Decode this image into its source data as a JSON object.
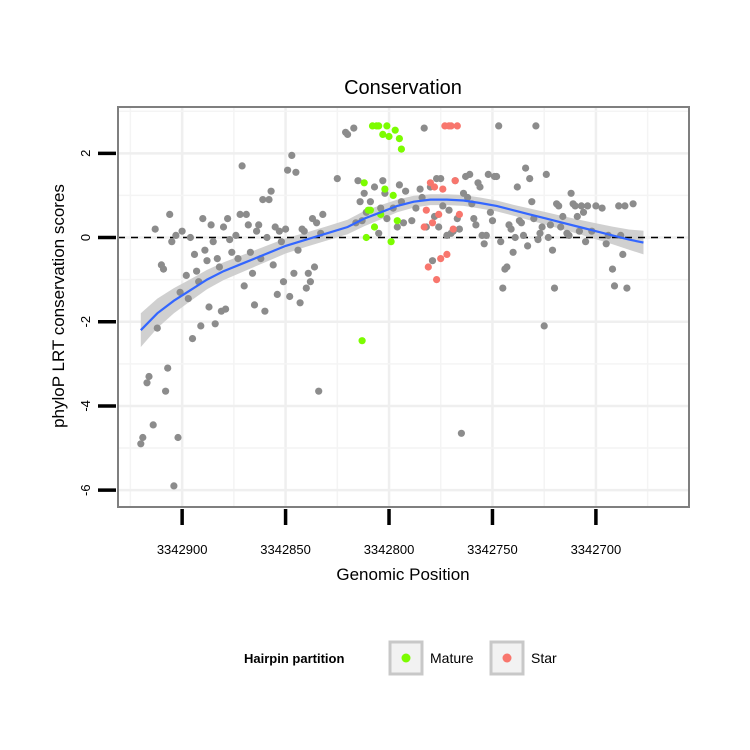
{
  "chart_data": {
    "type": "scatter",
    "title": "Conservation",
    "xlabel": "Genomic Position",
    "ylabel": "phyloP LRT conservation scores",
    "x_reversed": true,
    "xlim": [
      3342655,
      3342931
    ],
    "ylim": [
      -6.4,
      3.1
    ],
    "x_ticks": [
      3342900,
      3342850,
      3342800,
      3342750,
      3342700
    ],
    "x_tick_labels": [
      "3342900",
      "3342850",
      "3342800",
      "3342750",
      "3342700"
    ],
    "y_ticks": [
      2,
      0,
      -2,
      -4,
      -6
    ],
    "y_tick_labels": [
      "2",
      "0",
      "-2",
      "-4",
      "-6"
    ],
    "reference_line": {
      "y": 0,
      "style": "dashed"
    },
    "grid": true,
    "legend": {
      "title": "Hairpin partition",
      "position": "bottom",
      "entries": [
        {
          "label": "Mature",
          "color": "#7CFC00"
        },
        {
          "label": "Star",
          "color": "#F8766D"
        }
      ]
    },
    "colors": {
      "background_point": "#8c8c8c",
      "mature": "#7CFC00",
      "star": "#F8766D",
      "smooth": "#3366FF",
      "ribbon": "#c8c8c8"
    },
    "series": [
      {
        "name": "Background",
        "points": [
          [
            3342920,
            -4.9
          ],
          [
            3342919,
            -4.75
          ],
          [
            3342917,
            -3.45
          ],
          [
            3342916,
            -3.3
          ],
          [
            3342914,
            -4.45
          ],
          [
            3342913,
            0.2
          ],
          [
            3342912,
            -2.15
          ],
          [
            3342910,
            -0.65
          ],
          [
            3342909,
            -0.75
          ],
          [
            3342908,
            -3.65
          ],
          [
            3342907,
            -3.1
          ],
          [
            3342906,
            0.55
          ],
          [
            3342905,
            -0.1
          ],
          [
            3342904,
            -5.9
          ],
          [
            3342903,
            0.05
          ],
          [
            3342902,
            -4.75
          ],
          [
            3342901,
            -1.3
          ],
          [
            3342900,
            0.15
          ],
          [
            3342898,
            -0.9
          ],
          [
            3342897,
            -1.45
          ],
          [
            3342896,
            0.0
          ],
          [
            3342895,
            -2.4
          ],
          [
            3342894,
            -0.4
          ],
          [
            3342893,
            -0.8
          ],
          [
            3342892,
            -1.05
          ],
          [
            3342891,
            -2.1
          ],
          [
            3342890,
            0.45
          ],
          [
            3342889,
            -0.3
          ],
          [
            3342888,
            -0.55
          ],
          [
            3342887,
            -1.65
          ],
          [
            3342886,
            0.3
          ],
          [
            3342885,
            -0.1
          ],
          [
            3342884,
            -2.05
          ],
          [
            3342883,
            -0.5
          ],
          [
            3342882,
            -0.7
          ],
          [
            3342881,
            -1.75
          ],
          [
            3342880,
            0.25
          ],
          [
            3342879,
            -1.7
          ],
          [
            3342878,
            0.45
          ],
          [
            3342877,
            -0.05
          ],
          [
            3342876,
            -0.35
          ],
          [
            3342874,
            0.05
          ],
          [
            3342873,
            -0.5
          ],
          [
            3342872,
            0.55
          ],
          [
            3342871,
            1.7
          ],
          [
            3342870,
            -1.15
          ],
          [
            3342869,
            0.55
          ],
          [
            3342868,
            0.3
          ],
          [
            3342867,
            -0.35
          ],
          [
            3342866,
            -0.85
          ],
          [
            3342865,
            -1.6
          ],
          [
            3342864,
            0.15
          ],
          [
            3342863,
            0.3
          ],
          [
            3342862,
            -0.5
          ],
          [
            3342861,
            0.9
          ],
          [
            3342860,
            -1.75
          ],
          [
            3342859,
            0.0
          ],
          [
            3342858,
            0.9
          ],
          [
            3342857,
            1.1
          ],
          [
            3342856,
            -0.65
          ],
          [
            3342855,
            0.25
          ],
          [
            3342854,
            -1.35
          ],
          [
            3342853,
            0.15
          ],
          [
            3342852,
            -0.1
          ],
          [
            3342851,
            -1.05
          ],
          [
            3342850,
            0.2
          ],
          [
            3342849,
            1.6
          ],
          [
            3342848,
            -1.4
          ],
          [
            3342847,
            1.95
          ],
          [
            3342846,
            -0.85
          ],
          [
            3342845,
            1.55
          ],
          [
            3342844,
            -0.3
          ],
          [
            3342843,
            -1.55
          ],
          [
            3342842,
            0.2
          ],
          [
            3342841,
            0.15
          ],
          [
            3342840,
            -1.2
          ],
          [
            3342839,
            -0.85
          ],
          [
            3342838,
            -1.05
          ],
          [
            3342837,
            0.45
          ],
          [
            3342836,
            -0.7
          ],
          [
            3342835,
            0.35
          ],
          [
            3342834,
            -3.65
          ],
          [
            3342833,
            0.1
          ],
          [
            3342832,
            0.55
          ],
          [
            3342825,
            1.4
          ],
          [
            3342821,
            2.5
          ],
          [
            3342820,
            2.45
          ],
          [
            3342817,
            2.6
          ],
          [
            3342816,
            0.35
          ],
          [
            3342815,
            1.35
          ],
          [
            3342814,
            0.85
          ],
          [
            3342813,
            0.4
          ],
          [
            3342812,
            1.05
          ],
          [
            3342811,
            0.6
          ],
          [
            3342809,
            0.85
          ],
          [
            3342807,
            1.2
          ],
          [
            3342805,
            0.1
          ],
          [
            3342804,
            0.7
          ],
          [
            3342803,
            1.35
          ],
          [
            3342802,
            1.05
          ],
          [
            3342801,
            0.45
          ],
          [
            3342798,
            0.7
          ],
          [
            3342796,
            0.25
          ],
          [
            3342795,
            1.25
          ],
          [
            3342794,
            0.85
          ],
          [
            3342793,
            0.35
          ],
          [
            3342792,
            1.1
          ],
          [
            3342789,
            0.4
          ],
          [
            3342787,
            0.7
          ],
          [
            3342785,
            1.15
          ],
          [
            3342784,
            0.95
          ],
          [
            3342783,
            2.6
          ],
          [
            3342782,
            0.25
          ],
          [
            3342780,
            1.2
          ],
          [
            3342779,
            -0.55
          ],
          [
            3342778,
            0.5
          ],
          [
            3342777,
            1.4
          ],
          [
            3342776,
            0.25
          ],
          [
            3342775,
            1.4
          ],
          [
            3342774,
            0.75
          ],
          [
            3342772,
            0.05
          ],
          [
            3342771,
            0.65
          ],
          [
            3342770,
            0.1
          ],
          [
            3342769,
            0.15
          ],
          [
            3342768,
            1.35
          ],
          [
            3342767,
            0.45
          ],
          [
            3342766,
            0.2
          ],
          [
            3342765,
            -4.65
          ],
          [
            3342764,
            1.05
          ],
          [
            3342763,
            1.45
          ],
          [
            3342762,
            0.95
          ],
          [
            3342761,
            1.5
          ],
          [
            3342760,
            0.8
          ],
          [
            3342759,
            0.45
          ],
          [
            3342758,
            0.3
          ],
          [
            3342757,
            1.3
          ],
          [
            3342756,
            1.2
          ],
          [
            3342755,
            0.05
          ],
          [
            3342754,
            -0.15
          ],
          [
            3342753,
            0.05
          ],
          [
            3342752,
            1.5
          ],
          [
            3342751,
            0.6
          ],
          [
            3342750,
            0.4
          ],
          [
            3342749,
            1.45
          ],
          [
            3342748,
            1.45
          ],
          [
            3342747,
            2.65
          ],
          [
            3342746,
            -0.1
          ],
          [
            3342745,
            -1.2
          ],
          [
            3342744,
            -0.75
          ],
          [
            3342743,
            -0.7
          ],
          [
            3342742,
            0.3
          ],
          [
            3342741,
            0.2
          ],
          [
            3342740,
            -0.35
          ],
          [
            3342739,
            0.0
          ],
          [
            3342738,
            1.2
          ],
          [
            3342737,
            0.4
          ],
          [
            3342736,
            0.35
          ],
          [
            3342735,
            0.05
          ],
          [
            3342734,
            1.65
          ],
          [
            3342733,
            -0.2
          ],
          [
            3342732,
            1.4
          ],
          [
            3342731,
            0.85
          ],
          [
            3342730,
            0.45
          ],
          [
            3342729,
            2.65
          ],
          [
            3342728,
            -0.05
          ],
          [
            3342727,
            0.1
          ],
          [
            3342726,
            0.25
          ],
          [
            3342725,
            -2.1
          ],
          [
            3342724,
            1.5
          ],
          [
            3342723,
            0.0
          ],
          [
            3342722,
            0.3
          ],
          [
            3342721,
            -0.3
          ],
          [
            3342720,
            -1.2
          ],
          [
            3342719,
            0.8
          ],
          [
            3342718,
            0.75
          ],
          [
            3342717,
            0.25
          ],
          [
            3342716,
            0.5
          ],
          [
            3342714,
            0.1
          ],
          [
            3342713,
            0.05
          ],
          [
            3342712,
            1.05
          ],
          [
            3342711,
            0.8
          ],
          [
            3342710,
            0.75
          ],
          [
            3342709,
            0.5
          ],
          [
            3342708,
            0.15
          ],
          [
            3342707,
            0.75
          ],
          [
            3342706,
            0.6
          ],
          [
            3342705,
            -0.1
          ],
          [
            3342704,
            0.75
          ],
          [
            3342702,
            0.15
          ],
          [
            3342700,
            0.75
          ],
          [
            3342697,
            0.7
          ],
          [
            3342695,
            -0.15
          ],
          [
            3342694,
            0.05
          ],
          [
            3342692,
            -0.75
          ],
          [
            3342691,
            -1.15
          ],
          [
            3342689,
            0.75
          ],
          [
            3342688,
            0.05
          ],
          [
            3342687,
            -0.4
          ],
          [
            3342686,
            0.75
          ],
          [
            3342685,
            -1.2
          ],
          [
            3342682,
            0.8
          ]
        ]
      },
      {
        "name": "Mature",
        "points": [
          [
            3342813,
            -2.45
          ],
          [
            3342812,
            1.3
          ],
          [
            3342811,
            0.0
          ],
          [
            3342810,
            0.65
          ],
          [
            3342809,
            0.65
          ],
          [
            3342808,
            2.65
          ],
          [
            3342807,
            0.25
          ],
          [
            3342806,
            2.65
          ],
          [
            3342805,
            2.65
          ],
          [
            3342804,
            0.55
          ],
          [
            3342803,
            2.45
          ],
          [
            3342802,
            1.15
          ],
          [
            3342801,
            2.65
          ],
          [
            3342800,
            2.4
          ],
          [
            3342799,
            -0.1
          ],
          [
            3342798,
            1.0
          ],
          [
            3342797,
            2.55
          ],
          [
            3342796,
            0.4
          ],
          [
            3342795,
            2.35
          ],
          [
            3342794,
            2.1
          ]
        ]
      },
      {
        "name": "Star",
        "points": [
          [
            3342783,
            0.25
          ],
          [
            3342782,
            0.65
          ],
          [
            3342781,
            -0.7
          ],
          [
            3342780,
            1.3
          ],
          [
            3342779,
            0.35
          ],
          [
            3342778,
            1.2
          ],
          [
            3342777,
            -1.0
          ],
          [
            3342776,
            0.55
          ],
          [
            3342775,
            -0.5
          ],
          [
            3342774,
            1.15
          ],
          [
            3342773,
            2.65
          ],
          [
            3342772,
            -0.4
          ],
          [
            3342771,
            2.65
          ],
          [
            3342770,
            2.65
          ],
          [
            3342769,
            0.2
          ],
          [
            3342768,
            1.35
          ],
          [
            3342767,
            2.65
          ],
          [
            3342766,
            0.55
          ]
        ]
      }
    ],
    "smooth": {
      "x": [
        3342920,
        3342912,
        3342904,
        3342896,
        3342888,
        3342880,
        3342870,
        3342860,
        3342850,
        3342840,
        3342830,
        3342820,
        3342812,
        3342804,
        3342796,
        3342788,
        3342780,
        3342772,
        3342764,
        3342756,
        3342748,
        3342740,
        3342732,
        3342724,
        3342716,
        3342708,
        3342700,
        3342692,
        3342684,
        3342677
      ],
      "y": [
        -2.2,
        -1.8,
        -1.5,
        -1.25,
        -1.0,
        -0.8,
        -0.6,
        -0.4,
        -0.2,
        -0.05,
        0.1,
        0.25,
        0.45,
        0.6,
        0.75,
        0.85,
        0.9,
        0.9,
        0.88,
        0.82,
        0.75,
        0.65,
        0.55,
        0.45,
        0.35,
        0.25,
        0.15,
        0.05,
        -0.05,
        -0.12
      ],
      "se": [
        0.4,
        0.35,
        0.3,
        0.26,
        0.23,
        0.21,
        0.2,
        0.19,
        0.18,
        0.17,
        0.17,
        0.17,
        0.18,
        0.17,
        0.15,
        0.14,
        0.13,
        0.13,
        0.13,
        0.13,
        0.13,
        0.13,
        0.14,
        0.15,
        0.16,
        0.17,
        0.19,
        0.21,
        0.24,
        0.28
      ]
    }
  }
}
